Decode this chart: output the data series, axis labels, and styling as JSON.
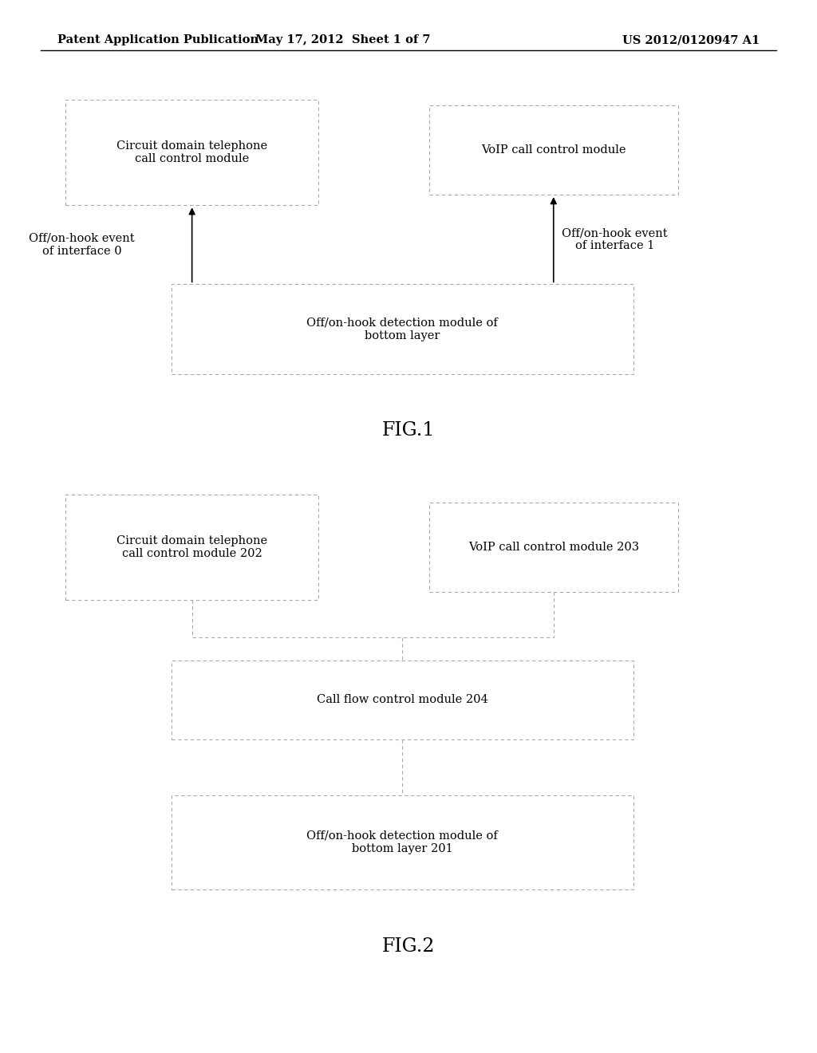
{
  "bg_color": "#ffffff",
  "header_left": "Patent Application Publication",
  "header_center": "May 17, 2012  Sheet 1 of 7",
  "header_right": "US 2012/0120947 A1",
  "header_fontsize": 10.5,
  "box_edge_color": "#aaaaaa",
  "box_fill": "#ffffff",
  "text_fontsize": 10.5,
  "fig1": {
    "title": "FIG.1",
    "box1_label": "Circuit domain telephone\ncall control module",
    "box2_label": "VoIP call control module",
    "box3_label": "Off/on-hook detection module of\nbottom layer",
    "label_left": "Off/on-hook event\nof interface 0",
    "label_right": "Off/on-hook event\nof interface 1"
  },
  "fig2": {
    "title": "FIG.2",
    "box1_label": "Circuit domain telephone\ncall control module 202",
    "box2_label": "VoIP call control module 203",
    "box3_label": "Call flow control module 204",
    "box4_label": "Off/on-hook detection module of\nbottom layer 201"
  }
}
